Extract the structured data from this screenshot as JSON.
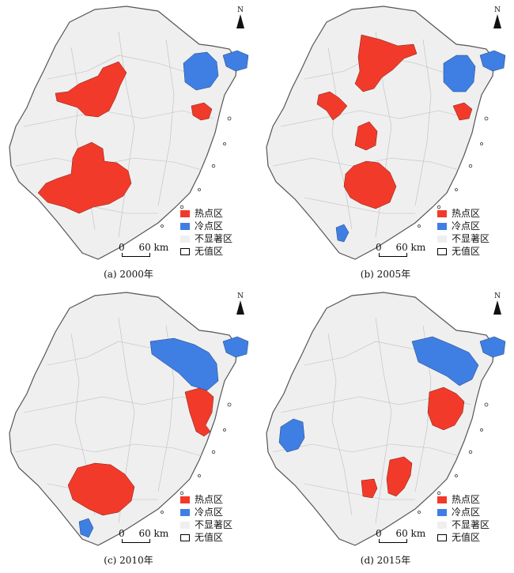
{
  "colors": {
    "hot": "#f23a2a",
    "cold": "#3f7fe3",
    "ns": "#efefef",
    "none": "#ffffff",
    "border": "#555555"
  },
  "legend": {
    "hot": "热点区",
    "cold": "冷点区",
    "ns": "不显著区",
    "none": "无值区"
  },
  "scale": {
    "zero": "0",
    "dist": "60 km"
  },
  "north": "N",
  "panels": [
    {
      "id": "a",
      "caption": "(a) 2000年"
    },
    {
      "id": "b",
      "caption": "(b) 2005年"
    },
    {
      "id": "c",
      "caption": "(c) 2010年"
    },
    {
      "id": "d",
      "caption": "(d) 2015年"
    }
  ]
}
